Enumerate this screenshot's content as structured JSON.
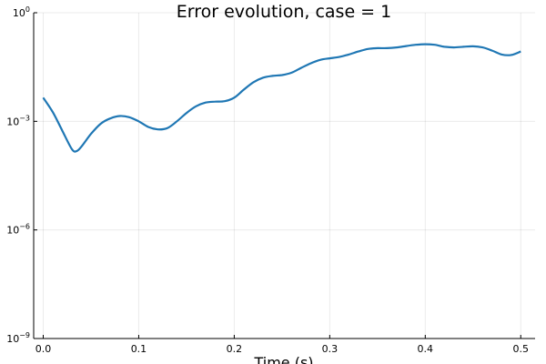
{
  "chart_data": {
    "type": "line",
    "title": "Error evolution, case = 1",
    "xlabel": "Time (s)",
    "ylabel": "",
    "xlim": [
      -0.01,
      0.515
    ],
    "ylim": [
      1e-09,
      1
    ],
    "yscale": "log",
    "grid": true,
    "legend": "none",
    "x_ticks": [
      {
        "value": 0.0,
        "label": "0.0"
      },
      {
        "value": 0.1,
        "label": "0.1"
      },
      {
        "value": 0.2,
        "label": "0.2"
      },
      {
        "value": 0.3,
        "label": "0.3"
      },
      {
        "value": 0.4,
        "label": "0.4"
      },
      {
        "value": 0.5,
        "label": "0.5"
      }
    ],
    "y_ticks": [
      {
        "value": 1e-09,
        "base": "10",
        "exp": "−9"
      },
      {
        "value": 1e-06,
        "base": "10",
        "exp": "−6"
      },
      {
        "value": 0.001,
        "base": "10",
        "exp": "−3"
      },
      {
        "value": 1,
        "base": "10",
        "exp": "0"
      }
    ],
    "series": [
      {
        "color": "#1f77b4",
        "x": [
          0.0,
          0.01,
          0.02,
          0.03,
          0.035,
          0.04,
          0.05,
          0.06,
          0.07,
          0.08,
          0.09,
          0.1,
          0.11,
          0.12,
          0.13,
          0.14,
          0.15,
          0.16,
          0.17,
          0.18,
          0.19,
          0.2,
          0.21,
          0.22,
          0.23,
          0.24,
          0.25,
          0.26,
          0.27,
          0.28,
          0.29,
          0.3,
          0.31,
          0.32,
          0.33,
          0.34,
          0.35,
          0.36,
          0.37,
          0.38,
          0.39,
          0.4,
          0.41,
          0.42,
          0.43,
          0.44,
          0.45,
          0.46,
          0.47,
          0.48,
          0.49,
          0.5
        ],
        "y": [
          0.0045,
          0.0018,
          0.00055,
          0.00017,
          0.00015,
          0.0002,
          0.00045,
          0.00085,
          0.0012,
          0.0014,
          0.0013,
          0.001,
          0.0007,
          0.0006,
          0.00065,
          0.001,
          0.0017,
          0.0026,
          0.0033,
          0.0035,
          0.0036,
          0.0045,
          0.0075,
          0.012,
          0.016,
          0.018,
          0.019,
          0.022,
          0.03,
          0.04,
          0.05,
          0.055,
          0.06,
          0.07,
          0.085,
          0.1,
          0.105,
          0.105,
          0.11,
          0.12,
          0.13,
          0.135,
          0.13,
          0.115,
          0.11,
          0.115,
          0.118,
          0.11,
          0.09,
          0.07,
          0.068,
          0.085
        ]
      }
    ]
  }
}
